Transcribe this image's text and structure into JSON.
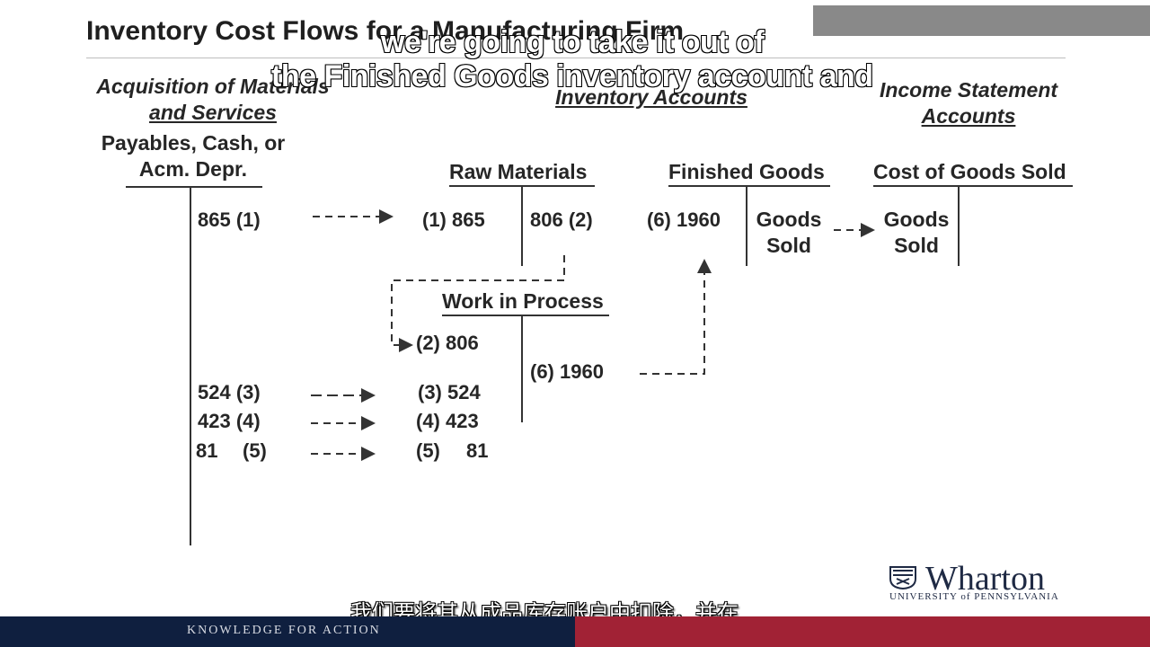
{
  "slide": {
    "title": "Inventory Cost Flows for a Manufacturing Firm"
  },
  "headers": {
    "acquisition_line1": "Acquisition of Materials",
    "acquisition_line2": "and Services",
    "inventory": "Inventory Accounts",
    "income_line1": "Income Statement",
    "income_line2": "Accounts"
  },
  "accounts": {
    "payables_line1": "Payables, Cash, or",
    "payables_line2": "Acm. Depr.",
    "raw_materials": "Raw Materials",
    "finished_goods": "Finished Goods",
    "cogs": "Cost of Goods Sold",
    "wip": "Work in Process"
  },
  "entries": {
    "pay_1": "865  (1)",
    "pay_3": "524  (3)",
    "pay_4": "423  (4)",
    "pay_5_amt": "81",
    "pay_5_ref": "(5)",
    "rm_debit_1": "(1)  865",
    "rm_credit_2": "806 (2)",
    "fg_debit_6": "(6)  1960",
    "fg_credit_line1": "Goods",
    "fg_credit_line2": "Sold",
    "cogs_debit_line1": "Goods",
    "cogs_debit_line2": "Sold",
    "wip_debit_2": "(2)  806",
    "wip_debit_3": "(3)  524",
    "wip_debit_4": "(4)  423",
    "wip_debit_5_ref": "(5)",
    "wip_debit_5_amt": "81",
    "wip_credit_6": "(6)  1960"
  },
  "subtitles": {
    "en_line1": "we're going to take it out of",
    "en_line2": "the Finished Goods inventory account and",
    "cn": "我们要将其从成品库存账户中扣除，并在"
  },
  "footer": {
    "tagline": "KNOWLEDGE FOR ACTION",
    "logo_word": "Wharton",
    "logo_sub": "UNIVERSITY of PENNSYLVANIA"
  }
}
